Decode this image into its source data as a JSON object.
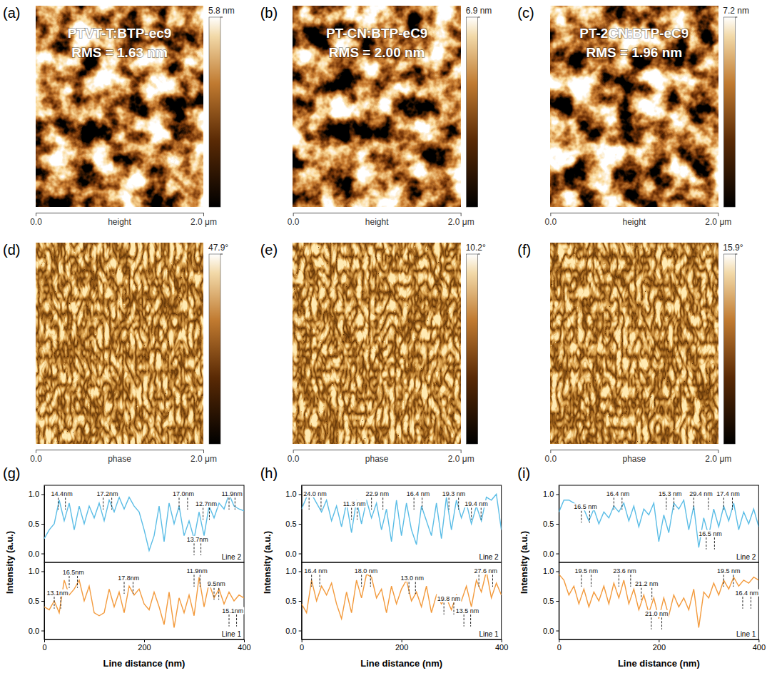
{
  "images": [
    {
      "letter": "(a)",
      "type": "afm_height",
      "title": "PTVT-T:BTP-ec9",
      "subtitle": "RMS = 1.63 nm",
      "colorbar": {
        "range": [
          0,
          5.8
        ],
        "ticks": [
          {
            "value": 5.8,
            "label": "5.8 nm"
          }
        ]
      },
      "xlabel": "height",
      "xlim": [
        0,
        2.0
      ],
      "xticks": [
        {
          "value": 0,
          "label": "0.0"
        },
        {
          "value": 2.0,
          "label": "2.0 μm"
        }
      ]
    },
    {
      "letter": "(b)",
      "type": "afm_height",
      "title": "PT-CN:BTP-eC9",
      "subtitle": "RMS = 2.00 nm",
      "colorbar": {
        "range": [
          0,
          6.9
        ],
        "ticks": [
          {
            "value": 6.9,
            "label": "6.9 nm"
          }
        ]
      },
      "xlabel": "height",
      "xlim": [
        0,
        2.0
      ],
      "xticks": [
        {
          "value": 0,
          "label": "0.0"
        },
        {
          "value": 2.0,
          "label": "2.0 μm"
        }
      ]
    },
    {
      "letter": "(c)",
      "type": "afm_height",
      "title": "PT-2CN:BTP-eC9",
      "subtitle": "RMS = 1.96 nm",
      "colorbar": {
        "range": [
          0,
          7.2
        ],
        "ticks": [
          {
            "value": 7.2,
            "label": "7.2 nm"
          }
        ]
      },
      "xlabel": "height",
      "xlim": [
        0,
        2.0
      ],
      "xticks": [
        {
          "value": 0,
          "label": "0.0"
        },
        {
          "value": 2.0,
          "label": "2.0 μm"
        }
      ]
    },
    {
      "letter": "(d)",
      "type": "afm_phase",
      "colorbar": {
        "range": [
          0,
          47.9
        ],
        "ticks": [
          {
            "value": 47.9,
            "label": "47.9°"
          }
        ]
      },
      "xlabel": "phase",
      "xlim": [
        0,
        2.0
      ],
      "xticks": [
        {
          "value": 0,
          "label": "0.0"
        },
        {
          "value": 2.0,
          "label": "2.0 μm"
        }
      ]
    },
    {
      "letter": "(e)",
      "type": "afm_phase",
      "colorbar": {
        "range": [
          0,
          10.2
        ],
        "ticks": [
          {
            "value": 10.2,
            "label": "10.2°"
          }
        ]
      },
      "xlabel": "phase",
      "xlim": [
        0,
        2.0
      ],
      "xticks": [
        {
          "value": 0,
          "label": "0.0"
        },
        {
          "value": 2.0,
          "label": "2.0 μm"
        }
      ]
    },
    {
      "letter": "(f)",
      "type": "afm_phase",
      "colorbar": {
        "range": [
          0,
          15.9
        ],
        "ticks": [
          {
            "value": 15.9,
            "label": "15.9°"
          }
        ]
      },
      "xlabel": "phase",
      "xlim": [
        0,
        2.0
      ],
      "xticks": [
        {
          "value": 0,
          "label": "0.0"
        },
        {
          "value": 2.0,
          "label": "2.0 μm"
        }
      ]
    }
  ],
  "chart_data": [
    {
      "type": "line",
      "letter": "(g)",
      "xlabel": "Line distance (nm)",
      "ylabel": "Intensity (a.u.)",
      "legend": "lower right",
      "x": [
        0,
        10,
        20,
        30,
        40,
        50,
        60,
        70,
        80,
        90,
        100,
        110,
        120,
        130,
        140,
        150,
        160,
        170,
        180,
        190,
        200,
        210,
        220,
        230,
        240,
        250,
        260,
        270,
        280,
        290,
        300,
        310,
        320,
        330,
        340,
        350,
        360,
        370,
        380,
        390,
        400
      ],
      "xlim": [
        0,
        400
      ],
      "xticks": [
        0,
        200,
        400
      ],
      "series": [
        {
          "name": "Line 2",
          "color": "#5bbde6",
          "ylim": [
            -0.15,
            1.15
          ],
          "yticks": [
            {
              "value": 0,
              "label": "0.0"
            },
            0.5,
            {
              "value": 1,
              "label": "1.0"
            }
          ],
          "values": [
            0.25,
            0.4,
            0.5,
            0.9,
            0.55,
            0.85,
            0.4,
            0.8,
            0.5,
            0.8,
            0.6,
            0.85,
            0.55,
            0.9,
            0.7,
            0.95,
            0.75,
            0.95,
            0.8,
            0.7,
            0.4,
            0.05,
            0.3,
            0.8,
            0.2,
            0.85,
            0.5,
            0.8,
            0.3,
            0.55,
            0.25,
            0.7,
            0.3,
            0.8,
            0.6,
            0.85,
            0.75,
            1.0,
            0.8,
            0.75,
            0.72
          ],
          "annotations": [
            {
              "label": "14.4nm",
              "value": 14.4,
              "x": 28,
              "y": 0.97
            },
            {
              "label": "17.2nm",
              "value": 17.2,
              "x": 118,
              "y": 0.97
            },
            {
              "label": "17.0nm",
              "value": 17.0,
              "x": 270,
              "y": 0.97
            },
            {
              "label": "12.7nm",
              "value": 12.7,
              "x": 318,
              "y": 0.8
            },
            {
              "label": "13.7nm",
              "value": 13.7,
              "x": 300,
              "y": 0.2
            },
            {
              "label": "11.9nm",
              "value": 11.9,
              "x": 370,
              "y": 0.97
            }
          ]
        },
        {
          "name": "Line 1",
          "color": "#f39a3c",
          "ylim": [
            -0.15,
            1.15
          ],
          "yticks": [
            {
              "value": 0,
              "label": "0.0"
            },
            0.5,
            {
              "value": 1,
              "label": "1.0"
            }
          ],
          "values": [
            0.4,
            0.35,
            0.5,
            0.3,
            0.85,
            0.6,
            0.7,
            0.85,
            0.5,
            0.75,
            0.3,
            0.25,
            0.3,
            0.7,
            0.4,
            0.65,
            0.3,
            0.75,
            0.6,
            0.7,
            0.45,
            0.35,
            0.65,
            0.4,
            0.1,
            0.65,
            0.05,
            0.55,
            0.3,
            0.6,
            0.25,
            0.9,
            0.4,
            0.8,
            0.55,
            0.7,
            0.45,
            0.65,
            0.5,
            0.6,
            0.55
          ],
          "annotations": [
            {
              "label": "13.1nm",
              "value": 13.1,
              "x": 20,
              "y": 0.6
            },
            {
              "label": "16.5nm",
              "value": 16.5,
              "x": 50,
              "y": 0.95
            },
            {
              "label": "17.8nm",
              "value": 17.8,
              "x": 160,
              "y": 0.85
            },
            {
              "label": "11.9nm",
              "value": 11.9,
              "x": 300,
              "y": 0.97
            },
            {
              "label": "9.5nm",
              "value": 9.5,
              "x": 340,
              "y": 0.75
            },
            {
              "label": "15.1nm",
              "value": 15.1,
              "x": 370,
              "y": 0.3
            }
          ]
        }
      ]
    },
    {
      "type": "line",
      "letter": "(h)",
      "xlabel": "Line distance (nm)",
      "ylabel": "Intensity (a.u.)",
      "legend": "lower right",
      "x": [
        0,
        10,
        20,
        30,
        40,
        50,
        60,
        70,
        80,
        90,
        100,
        110,
        120,
        130,
        140,
        150,
        160,
        170,
        180,
        190,
        200,
        210,
        220,
        230,
        240,
        250,
        260,
        270,
        280,
        290,
        300,
        310,
        320,
        330,
        340,
        350,
        360,
        370,
        380,
        390,
        400
      ],
      "xlim": [
        0,
        400
      ],
      "xticks": [
        0,
        200,
        400
      ],
      "series": [
        {
          "name": "Line 2",
          "color": "#5bbde6",
          "ylim": [
            -0.15,
            1.15
          ],
          "yticks": [
            {
              "value": 0,
              "label": "0.0"
            },
            0.5,
            {
              "value": 1,
              "label": "1.0"
            }
          ],
          "values": [
            0.75,
            0.95,
            1.0,
            0.85,
            0.7,
            0.9,
            0.55,
            0.8,
            0.45,
            0.85,
            0.35,
            0.9,
            0.5,
            0.9,
            0.6,
            0.85,
            0.4,
            0.75,
            0.2,
            0.9,
            0.3,
            0.85,
            0.4,
            0.15,
            0.8,
            0.55,
            0.3,
            0.85,
            0.25,
            0.95,
            0.4,
            0.9,
            0.6,
            0.85,
            0.5,
            0.8,
            0.55,
            0.95,
            0.9,
            1.0,
            0.4
          ],
          "annotations": [
            {
              "label": "24.0 nm",
              "value": 24.0,
              "x": 15,
              "y": 0.97
            },
            {
              "label": "11.3 nm",
              "value": 11.3,
              "x": 100,
              "y": 0.8
            },
            {
              "label": "22.9 nm",
              "value": 22.9,
              "x": 140,
              "y": 0.97
            },
            {
              "label": "16.4 nm",
              "value": 16.4,
              "x": 225,
              "y": 0.97
            },
            {
              "label": "19.3 nm",
              "value": 19.3,
              "x": 295,
              "y": 0.97
            },
            {
              "label": "19.4 nm",
              "value": 19.4,
              "x": 340,
              "y": 0.8
            }
          ]
        },
        {
          "name": "Line 1",
          "color": "#f39a3c",
          "ylim": [
            -0.15,
            1.15
          ],
          "yticks": [
            {
              "value": 0,
              "label": "0.0"
            },
            0.5,
            {
              "value": 1,
              "label": "1.0"
            }
          ],
          "values": [
            0.45,
            0.3,
            0.85,
            0.5,
            0.75,
            0.6,
            0.8,
            0.45,
            0.2,
            0.65,
            0.3,
            0.85,
            0.55,
            0.95,
            0.9,
            0.55,
            0.7,
            0.3,
            0.75,
            0.45,
            0.7,
            0.85,
            0.5,
            0.65,
            0.4,
            0.75,
            0.3,
            0.6,
            0.45,
            0.55,
            0.35,
            0.6,
            0.5,
            0.75,
            0.4,
            0.85,
            0.65,
            1.0,
            0.55,
            0.8,
            0.6
          ],
          "annotations": [
            {
              "label": "16.4 nm",
              "value": 16.4,
              "x": 20,
              "y": 0.97
            },
            {
              "label": "18.0 nm",
              "value": 18.0,
              "x": 120,
              "y": 0.97
            },
            {
              "label": "13.0 nm",
              "value": 13.0,
              "x": 215,
              "y": 0.85
            },
            {
              "label": "19.8 nm",
              "value": 19.8,
              "x": 285,
              "y": 0.5
            },
            {
              "label": "13.5 nm",
              "value": 13.5,
              "x": 325,
              "y": 0.3
            },
            {
              "label": "27.6 nm",
              "value": 27.6,
              "x": 355,
              "y": 0.97
            }
          ]
        }
      ]
    },
    {
      "type": "line",
      "letter": "(i)",
      "xlabel": "Line distance (nm)",
      "ylabel": "Intensity (a.u.)",
      "legend": "lower right",
      "x": [
        0,
        10,
        20,
        30,
        40,
        50,
        60,
        70,
        80,
        90,
        100,
        110,
        120,
        130,
        140,
        150,
        160,
        170,
        180,
        190,
        200,
        210,
        220,
        230,
        240,
        250,
        260,
        270,
        280,
        290,
        300,
        310,
        320,
        330,
        340,
        350,
        360,
        370,
        380,
        390,
        400
      ],
      "xlim": [
        0,
        400
      ],
      "xticks": [
        0,
        200,
        400
      ],
      "series": [
        {
          "name": "Line 2",
          "color": "#5bbde6",
          "ylim": [
            -0.15,
            1.15
          ],
          "yticks": [
            {
              "value": 0,
              "label": "0.0"
            },
            0.5,
            {
              "value": 1,
              "label": "1.0"
            }
          ],
          "values": [
            0.7,
            0.9,
            0.9,
            0.85,
            0.8,
            0.75,
            0.55,
            0.75,
            0.5,
            0.7,
            0.6,
            0.8,
            0.7,
            0.85,
            0.55,
            0.8,
            0.45,
            0.75,
            0.65,
            0.85,
            0.2,
            0.65,
            0.35,
            0.85,
            0.75,
            0.9,
            0.4,
            0.8,
            0.1,
            0.6,
            0.3,
            0.75,
            0.45,
            0.8,
            0.55,
            0.85,
            0.4,
            0.7,
            0.5,
            0.75,
            0.45
          ],
          "annotations": [
            {
              "label": "16.5 nm",
              "value": 16.5,
              "x": 45,
              "y": 0.75
            },
            {
              "label": "16.4 nm",
              "value": 16.4,
              "x": 110,
              "y": 0.97
            },
            {
              "label": "15.3 nm",
              "value": 15.3,
              "x": 215,
              "y": 0.97
            },
            {
              "label": "29.4 nm",
              "value": 29.4,
              "x": 270,
              "y": 0.97
            },
            {
              "label": "17.4 nm",
              "value": 17.4,
              "x": 330,
              "y": 0.97
            },
            {
              "label": "16.5 nm",
              "value": 16.5,
              "x": 295,
              "y": 0.3
            }
          ]
        },
        {
          "name": "Line 1",
          "color": "#f39a3c",
          "ylim": [
            -0.15,
            1.15
          ],
          "yticks": [
            {
              "value": 0,
              "label": "0.0"
            },
            0.5,
            {
              "value": 1,
              "label": "1.0"
            }
          ],
          "values": [
            0.95,
            0.85,
            0.6,
            0.75,
            0.45,
            0.7,
            0.4,
            0.65,
            0.5,
            0.75,
            0.45,
            0.8,
            0.55,
            0.85,
            0.45,
            0.7,
            0.35,
            0.6,
            0.3,
            0.55,
            0.2,
            0.55,
            0.25,
            0.6,
            0.4,
            0.55,
            0.35,
            0.7,
            0.05,
            0.65,
            0.55,
            0.8,
            0.6,
            0.85,
            0.7,
            0.9,
            0.75,
            0.85,
            0.8,
            0.9,
            0.85
          ],
          "annotations": [
            {
              "label": "19.5 nm",
              "value": 19.5,
              "x": 45,
              "y": 0.97
            },
            {
              "label": "23.6 nm",
              "value": 23.6,
              "x": 120,
              "y": 0.97
            },
            {
              "label": "21.2 nm",
              "value": 21.2,
              "x": 165,
              "y": 0.75
            },
            {
              "label": "21.0 nm",
              "value": 21.0,
              "x": 185,
              "y": 0.25
            },
            {
              "label": "19.5 nm",
              "value": 19.5,
              "x": 330,
              "y": 0.97
            },
            {
              "label": "16.4 nm",
              "value": 16.4,
              "x": 368,
              "y": 0.6
            }
          ]
        }
      ]
    }
  ]
}
